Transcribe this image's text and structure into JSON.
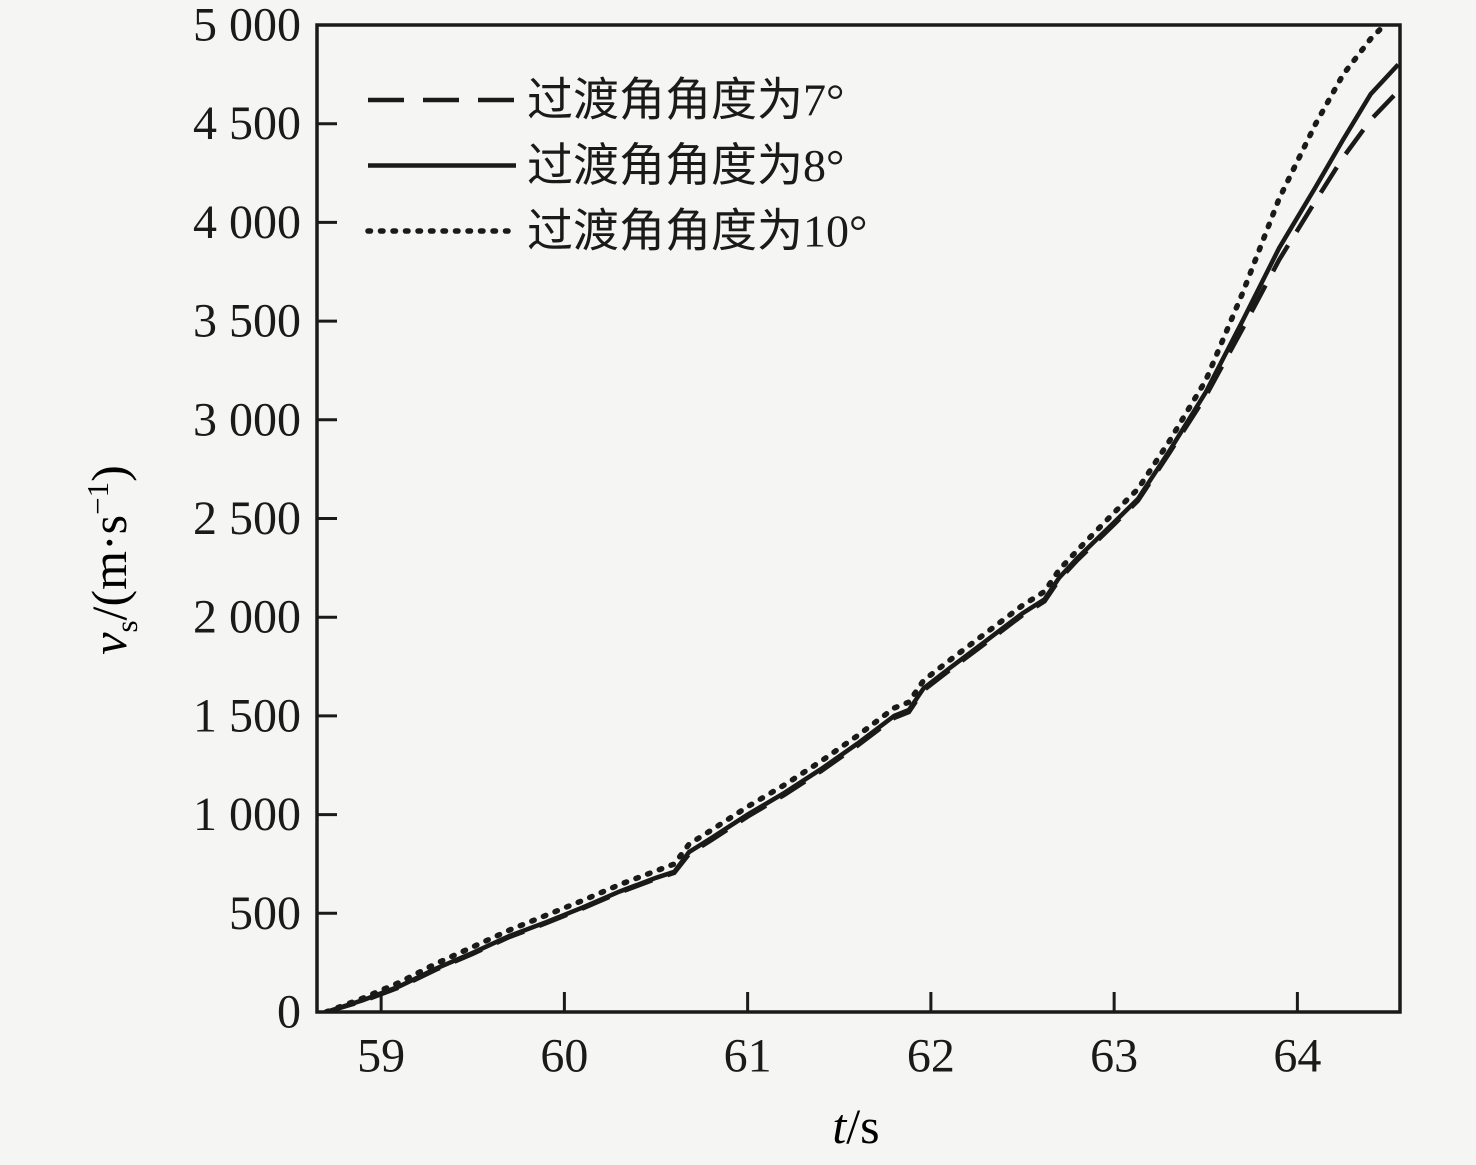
{
  "colors": {
    "background": "#f5f5f3",
    "line": "#1a1a1a",
    "text": "#1a1a1a"
  },
  "chart_data": {
    "type": "line",
    "title": "",
    "xlabel_parts": {
      "var": "t",
      "rest": "/s"
    },
    "ylabel_parts": {
      "var": "v",
      "sub": "s",
      "mid": "/(m·s",
      "sup": "−1",
      "end": ")"
    },
    "xlim": [
      58.65,
      64.56
    ],
    "ylim": [
      0,
      5000
    ],
    "grid": false,
    "legend_position": "inside-top-left",
    "x_ticks": [
      59,
      60,
      61,
      62,
      63,
      64
    ],
    "x_tick_labels": [
      "59",
      "60",
      "61",
      "62",
      "63",
      "64"
    ],
    "y_ticks": [
      0,
      500,
      1000,
      1500,
      2000,
      2500,
      3000,
      3500,
      4000,
      4500,
      5000
    ],
    "y_tick_labels": [
      "0",
      "500",
      "1 000",
      "1 500",
      "2 000",
      "2 500",
      "3 000",
      "3 500",
      "4 000",
      "4 500",
      "5 000"
    ],
    "series": [
      {
        "name": "过渡角角度为7°",
        "line_style": "dashed",
        "x": [
          58.7,
          58.9,
          59.1,
          59.3,
          59.5,
          59.7,
          59.9,
          60.1,
          60.3,
          60.5,
          60.6,
          60.68,
          60.8,
          61.0,
          61.2,
          61.4,
          61.6,
          61.8,
          61.88,
          61.96,
          62.1,
          62.3,
          62.5,
          62.62,
          62.7,
          62.8,
          63.0,
          63.13,
          63.3,
          63.5,
          63.7,
          63.9,
          64.1,
          64.25,
          64.4,
          64.55
        ],
        "y": [
          0,
          55,
          125,
          215,
          295,
          380,
          450,
          525,
          605,
          675,
          705,
          800,
          870,
          990,
          1100,
          1220,
          1350,
          1490,
          1520,
          1630,
          1730,
          1870,
          2010,
          2080,
          2190,
          2290,
          2470,
          2590,
          2830,
          3120,
          3460,
          3810,
          4110,
          4330,
          4520,
          4665
        ]
      },
      {
        "name": "过渡角角度为8°",
        "line_style": "solid",
        "x": [
          58.7,
          58.9,
          59.1,
          59.3,
          59.5,
          59.7,
          59.9,
          60.1,
          60.3,
          60.5,
          60.6,
          60.68,
          60.8,
          61.0,
          61.2,
          61.4,
          61.6,
          61.8,
          61.88,
          61.96,
          62.1,
          62.3,
          62.5,
          62.62,
          62.7,
          62.8,
          63.0,
          63.13,
          63.3,
          63.5,
          63.7,
          63.9,
          64.1,
          64.25,
          64.4,
          64.55
        ],
        "y": [
          0,
          60,
          130,
          220,
          300,
          385,
          455,
          530,
          610,
          680,
          710,
          810,
          880,
          1000,
          1110,
          1230,
          1360,
          1500,
          1530,
          1640,
          1740,
          1880,
          2020,
          2090,
          2200,
          2300,
          2480,
          2600,
          2840,
          3140,
          3500,
          3870,
          4180,
          4420,
          4650,
          4800
        ]
      },
      {
        "name": "过渡角角度为10°",
        "line_style": "dotted",
        "x": [
          58.7,
          58.9,
          59.1,
          59.3,
          59.5,
          59.7,
          59.9,
          60.1,
          60.3,
          60.5,
          60.6,
          60.68,
          60.8,
          61.0,
          61.2,
          61.4,
          61.6,
          61.8,
          61.88,
          61.96,
          62.1,
          62.3,
          62.5,
          62.62,
          62.7,
          62.8,
          63.0,
          63.13,
          63.3,
          63.5,
          63.7,
          63.9,
          64.1,
          64.25,
          64.4,
          64.47
        ],
        "y": [
          0,
          70,
          150,
          245,
          330,
          415,
          490,
          565,
          645,
          715,
          750,
          850,
          920,
          1040,
          1150,
          1270,
          1400,
          1540,
          1570,
          1680,
          1780,
          1920,
          2060,
          2130,
          2240,
          2340,
          2530,
          2650,
          2890,
          3200,
          3640,
          4120,
          4500,
          4750,
          4930,
          4995
        ]
      }
    ]
  }
}
